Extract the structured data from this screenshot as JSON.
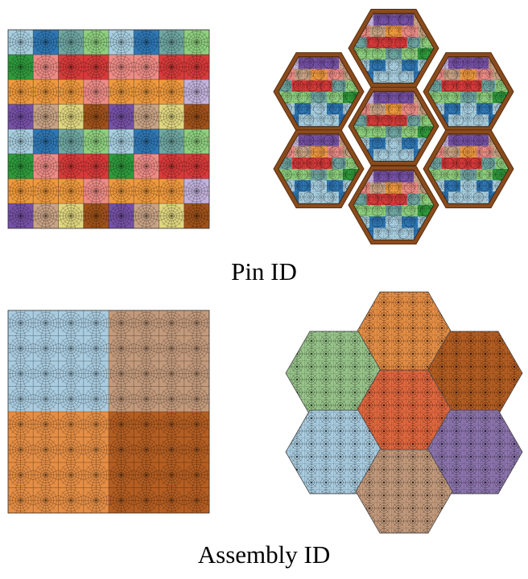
{
  "captions": {
    "pin": "Pin ID",
    "assembly": "Assembly ID"
  },
  "panels": {
    "pin_square": {
      "grid_rows": [
        [
          "lightblue",
          "blue",
          "teal",
          "green",
          "lightblue",
          "blue",
          "teal",
          "green"
        ],
        [
          "darkgreen",
          "salmon",
          "red",
          "red",
          "salmon",
          "salmon",
          "red",
          "red"
        ],
        [
          "orange",
          "orange",
          "orange",
          "salmon",
          "orange",
          "orange",
          "orange",
          "lavender"
        ],
        [
          "purple",
          "tan",
          "khaki",
          "brown",
          "purple",
          "tan",
          "khaki",
          "brown"
        ],
        [
          "lightblue",
          "blue",
          "teal",
          "green",
          "lightblue",
          "blue",
          "teal",
          "green"
        ],
        [
          "darkgreen",
          "salmon",
          "red",
          "red",
          "darkgreen",
          "salmon",
          "red",
          "red"
        ],
        [
          "orange",
          "orange",
          "orange",
          "salmon",
          "orange",
          "orange",
          "orange",
          "lavender"
        ],
        [
          "purple",
          "tan",
          "khaki",
          "brown",
          "purple",
          "tan",
          "khaki",
          "brown"
        ]
      ]
    },
    "pin_hex": {
      "assembly_count": 7,
      "band_rows": [
        [
          "lavender",
          "purple",
          "purple",
          "tan"
        ],
        [
          "salmon",
          "tan",
          "orange",
          "salmon",
          "tan"
        ],
        [
          "teal",
          "red",
          "red",
          "red",
          "teal",
          "green"
        ],
        [
          "green",
          "green",
          "teal",
          "green",
          "darkgreen"
        ],
        [
          "lightblue",
          "blue",
          "lightblue",
          "blue",
          "lightblue"
        ],
        [
          "blue",
          "lightblue",
          "lightblue",
          "blue"
        ]
      ],
      "frame_color": "#8a4b1c"
    },
    "assembly_square": {
      "quadrants": [
        "lightblue",
        "tan",
        "orange",
        "brown"
      ]
    },
    "assembly_hex": {
      "assemblies": [
        "orange",
        "green",
        "brown",
        "red",
        "lightblue",
        "purple",
        "tan"
      ]
    }
  },
  "palette": {
    "lightblue": "#a8cfe0",
    "blue": "#2e77b5",
    "teal": "#6fa6a2",
    "green": "#8fd07f",
    "darkgreen": "#2f9a3c",
    "salmon": "#ee8c86",
    "red": "#d93a3a",
    "orange": "#f09a3e",
    "lavender": "#c3b3dc",
    "purple": "#7651a6",
    "tan": "#c9a486",
    "khaki": "#e0d680",
    "brown": "#a0521a"
  },
  "assembly_palette": {
    "lightblue": "#a9cce0",
    "tan": "#c39a7c",
    "orange": "#e58e45",
    "brown": "#b55e22",
    "green": "#98c48a",
    "red": "#e0673e",
    "purple": "#8c74ad"
  }
}
